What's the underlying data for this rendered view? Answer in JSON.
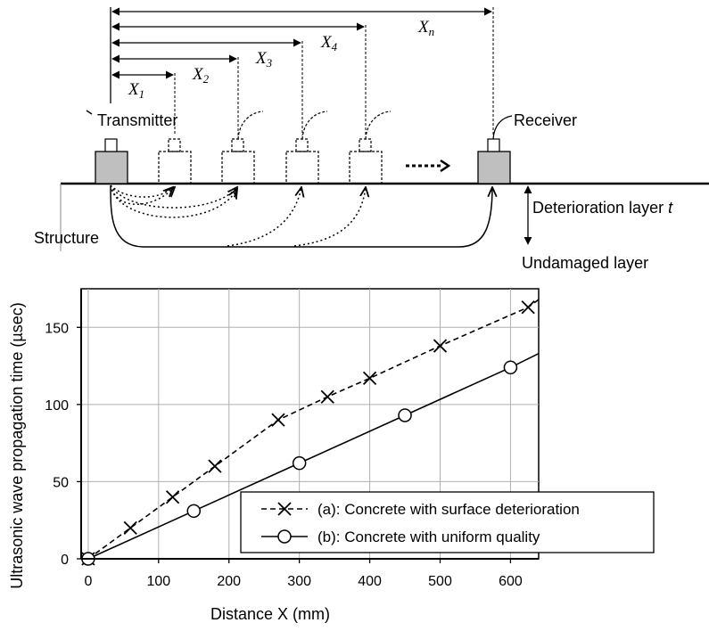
{
  "diagram": {
    "labels": {
      "transmitter": "Transmitter",
      "receiver": "Receiver",
      "structure": "Structure",
      "deterioration": "Deterioration layer ",
      "deterioration_var": "t",
      "undamaged": "Undamaged layer"
    },
    "distances": [
      {
        "base": "X",
        "sub": "1"
      },
      {
        "base": "X",
        "sub": "2"
      },
      {
        "base": "X",
        "sub": "3"
      },
      {
        "base": "X",
        "sub": "4"
      },
      {
        "base": "X",
        "sub": "n"
      }
    ]
  },
  "chart_data": {
    "type": "line",
    "xlabel": "Distance X (mm)",
    "ylabel": "Ultrasonic wave propagation time (µsec)",
    "xlim": [
      -10,
      640
    ],
    "ylim": [
      0,
      175
    ],
    "xticks": [
      0,
      100,
      200,
      300,
      400,
      500,
      600
    ],
    "yticks": [
      0,
      50,
      100,
      150
    ],
    "grid": true,
    "legend": "lower-right",
    "series": [
      {
        "name": "(a): Concrete with surface deterioration",
        "style": "dashed",
        "marker": "x",
        "color": "#000000",
        "x": [
          0,
          60,
          120,
          180,
          270,
          340,
          400,
          500,
          625
        ],
        "y": [
          0,
          20,
          40,
          60,
          90,
          105,
          117,
          138,
          163
        ],
        "line_end": [
          640,
          168
        ]
      },
      {
        "name": "(b): Concrete with uniform quality",
        "style": "solid",
        "marker": "o",
        "color": "#000000",
        "x": [
          0,
          150,
          300,
          450,
          600
        ],
        "y": [
          0,
          31,
          62,
          93,
          124
        ],
        "line_end": [
          640,
          133
        ]
      }
    ]
  }
}
